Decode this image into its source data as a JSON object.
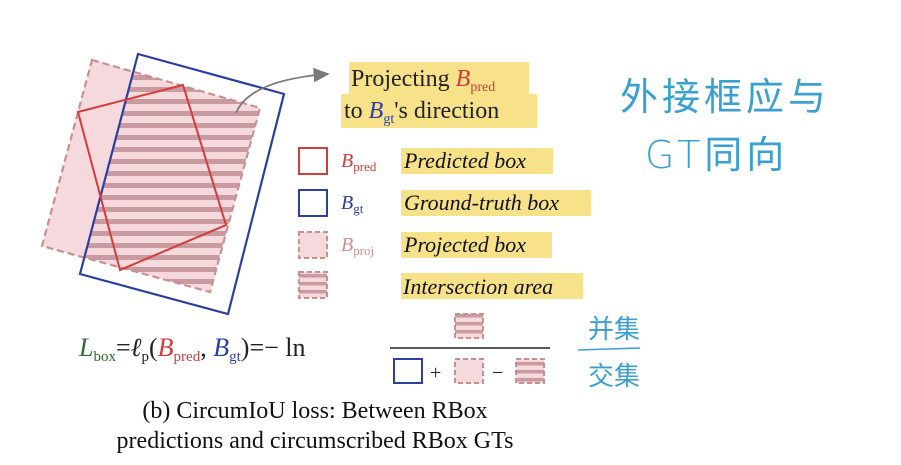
{
  "colors": {
    "pred": "#d23c3c",
    "gt": "#2c3fa0",
    "proj_stroke": "#c98f8f",
    "proj_fill": "#f5d9dc",
    "stripe": "#c99aa0",
    "highlight": "#f7e28a",
    "handwriting": "#3aa0d0",
    "loss_L": "#2e6b2e",
    "arrow": "#7a7a7a"
  },
  "callout": {
    "line1_prefix": "Projecting ",
    "line1_B": "B",
    "line1_sub": "pred",
    "line2_prefix": "to ",
    "line2_B": "B",
    "line2_sub": "gt",
    "line2_suffix": "'s direction"
  },
  "legend": [
    {
      "symbol": "B",
      "sub": "pred",
      "label": "Predicted box",
      "icon": "pred-box-icon"
    },
    {
      "symbol": "B",
      "sub": "gt",
      "label": "Ground-truth box",
      "icon": "gt-box-icon"
    },
    {
      "symbol": "B",
      "sub": "proj",
      "label": "Projected box",
      "icon": "proj-box-icon"
    },
    {
      "symbol": "",
      "sub": "",
      "label": "Intersection area",
      "icon": "intersection-icon"
    }
  ],
  "formula": {
    "L": "L",
    "L_sub": "box",
    "eq1": "=",
    "ell": "ℓ",
    "ell_sub": "p",
    "open": "(",
    "B1": "B",
    "B1_sub": "pred",
    "comma": ",",
    "B2": "B",
    "B2_sub": "gt",
    "close": ")",
    "eq2": "=",
    "minus_ln": "− ln",
    "plus": "+",
    "minus": "−"
  },
  "caption": {
    "line1": "(b) CircumIoU loss: Between RBox",
    "line2": "predictions and circumscribed RBox GTs"
  },
  "handwriting": {
    "note1_line1": "外接框应与",
    "note1_line2": "GT同向",
    "note2_top": "并集",
    "note2_bottom": "交集"
  }
}
